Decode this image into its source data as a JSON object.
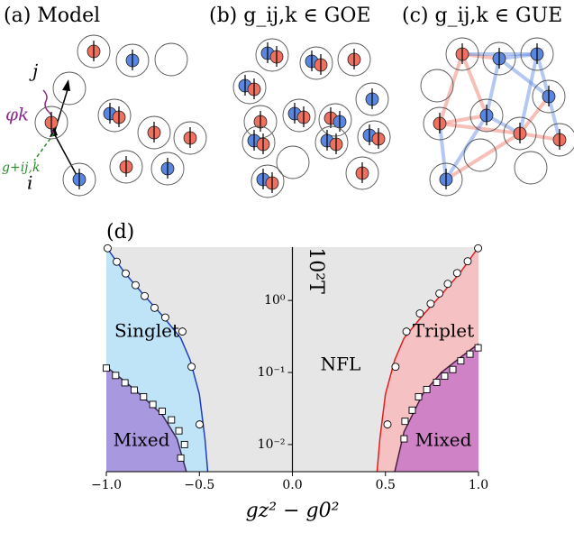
{
  "panels": [
    {
      "label": "(a) Model"
    },
    {
      "label": "(b) g_ij,k ∈ GOE"
    },
    {
      "label": "(c) g_ij,k ∈ GUE"
    }
  ],
  "model_labels": {
    "j": "j",
    "i": "i",
    "phi": "φk",
    "g": "g+ij,k"
  },
  "chart_data": {
    "type": "phase",
    "panel_label": "(d)",
    "xlabel": "gz² − g0²",
    "ylabel": "10²T",
    "log_y": true,
    "xlim": [
      -1,
      1
    ],
    "ylim": [
      0.0042,
      5.5
    ],
    "xticks": [
      {
        "value": -1,
        "label": "−1.0"
      },
      {
        "value": -0.5,
        "label": "−0.5"
      },
      {
        "value": 0,
        "label": "0.0"
      },
      {
        "value": 0.5,
        "label": "0.5"
      },
      {
        "value": 1,
        "label": "1.0"
      }
    ],
    "yticks": [
      {
        "value": 0.01,
        "label": "10⁻²"
      },
      {
        "value": 0.1,
        "label": "10⁻¹"
      },
      {
        "value": 1,
        "label": "10⁰"
      }
    ],
    "background": "#e6e6e6",
    "regions": [
      "Singlet",
      "Mixed",
      "NFL",
      "Triplet",
      "Mixed"
    ],
    "curves": [
      {
        "side": "left",
        "color": "#1f3fbf",
        "fill": "#bfe3f7",
        "x": [
          -1,
          -0.9,
          -0.8,
          -0.7,
          -0.6,
          -0.55,
          -0.5,
          -0.47,
          -0.455
        ],
        "values": [
          5.5,
          2.4,
          1.2,
          0.62,
          0.3,
          0.15,
          0.05,
          0.012,
          0.0042
        ]
      },
      {
        "side": "left",
        "color": "#3a2a55",
        "fill": "#a898e0",
        "x": [
          -1,
          -0.9,
          -0.8,
          -0.7,
          -0.62,
          -0.57
        ],
        "values": [
          0.12,
          0.075,
          0.045,
          0.026,
          0.012,
          0.0042
        ]
      },
      {
        "side": "right",
        "color": "#e0201c",
        "fill": "#f5c1c3",
        "x": [
          0.455,
          0.47,
          0.5,
          0.55,
          0.6,
          0.7,
          0.8,
          0.9,
          1
        ],
        "values": [
          0.0042,
          0.012,
          0.05,
          0.15,
          0.3,
          0.62,
          1.2,
          2.4,
          5.5
        ]
      },
      {
        "side": "right",
        "color": "#4a2040",
        "fill": "#cf82c6",
        "x": [
          0.55,
          0.6,
          0.7,
          0.8,
          0.9,
          1
        ],
        "values": [
          0.0042,
          0.015,
          0.05,
          0.1,
          0.16,
          0.25
        ]
      }
    ],
    "circles": {
      "x": [
        -0.993,
        -0.944,
        -0.896,
        -0.843,
        -0.794,
        -0.741,
        -0.683,
        -0.591,
        -0.542,
        -0.499,
        0.998,
        0.942,
        0.885,
        0.835,
        0.79,
        0.743,
        0.685,
        0.613,
        0.554,
        0.511
      ],
      "values": [
        5.3,
        3.45,
        2.37,
        1.63,
        1.15,
        0.79,
        0.58,
        0.37,
        0.12,
        0.019,
        5.3,
        3.5,
        2.4,
        1.7,
        1.25,
        0.9,
        0.66,
        0.37,
        0.12,
        0.019
      ]
    },
    "squares": {
      "x": [
        -1,
        -0.95,
        -0.9,
        -0.85,
        -0.8,
        -0.75,
        -0.7,
        -0.65,
        -0.61,
        -0.58,
        -0.6,
        0.998,
        0.954,
        0.905,
        0.862,
        0.818,
        0.775,
        0.722,
        0.678,
        0.644,
        0.605,
        0.6
      ],
      "values": [
        0.115,
        0.091,
        0.072,
        0.057,
        0.046,
        0.036,
        0.029,
        0.022,
        0.0155,
        0.01,
        0.0065,
        0.22,
        0.18,
        0.145,
        0.11,
        0.089,
        0.073,
        0.058,
        0.046,
        0.03,
        0.021,
        0.012
      ]
    }
  }
}
